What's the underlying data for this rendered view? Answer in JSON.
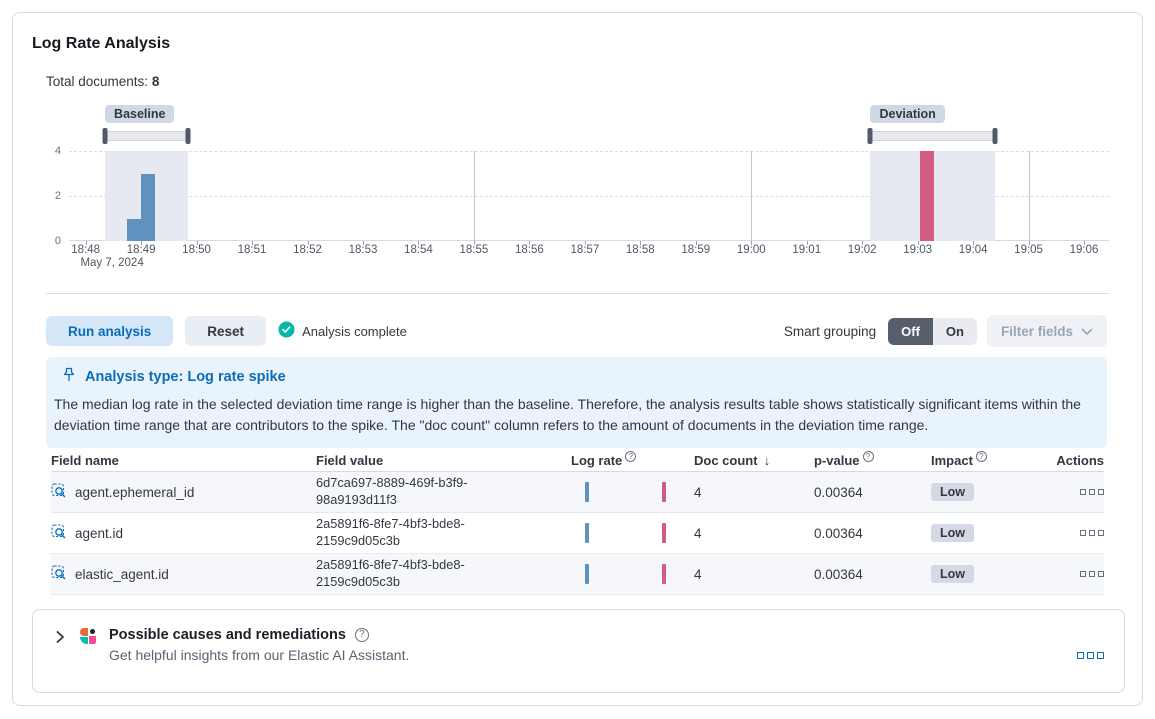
{
  "header": {
    "title": "Log Rate Analysis",
    "total_documents_label": "Total documents:",
    "total_documents_value": "8"
  },
  "chart_data": {
    "type": "bar",
    "title": "document count histogram",
    "xlabel": "time",
    "ylabel": "",
    "ylim": [
      0,
      4
    ],
    "y_gridlines": [
      2,
      4
    ],
    "y_tick_labels": [
      "4",
      "2",
      "0"
    ],
    "x_ticks": [
      "18:48",
      "18:49",
      "18:50",
      "18:51",
      "18:52",
      "18:53",
      "18:54",
      "18:55",
      "18:56",
      "18:57",
      "18:58",
      "18:59",
      "19:00",
      "19:01",
      "19:02",
      "19:03",
      "19:04",
      "19:05",
      "19:06"
    ],
    "x_date_label": "May 7, 2024",
    "major_grid_ticks": [
      7,
      12,
      17
    ],
    "domain_minutes": [
      -0.3,
      18.45
    ],
    "bars": [
      {
        "series": "baseline",
        "time": "18:48:45",
        "t": 0.75,
        "w": 0.25,
        "value": 1
      },
      {
        "series": "baseline",
        "time": "18:49:00",
        "t": 1.0,
        "w": 0.25,
        "value": 3
      },
      {
        "series": "deviation",
        "time": "19:03:00",
        "t": 15.05,
        "w": 0.25,
        "value": 4
      }
    ],
    "regions": [
      {
        "label": "Baseline",
        "t_start": 0.35,
        "t_end": 1.85
      },
      {
        "label": "Deviation",
        "t_start": 14.15,
        "t_end": 16.4
      }
    ],
    "colors": {
      "baseline": "#6092c0",
      "deviation": "#d25c82",
      "region_fill": "#e7e9f2"
    },
    "legend": "none"
  },
  "controls": {
    "run_label": "Run analysis",
    "reset_label": "Reset",
    "status_label": "Analysis complete",
    "smart_grouping_label": "Smart grouping",
    "toggle_off": "Off",
    "toggle_on": "On",
    "filter_fields_label": "Filter fields"
  },
  "callout": {
    "title": "Analysis type: Log rate spike",
    "body": "The median log rate in the selected deviation time range is higher than the baseline. Therefore, the analysis results table shows statistically significant items within the deviation time range that are contributors to the spike. The \"doc count\" column refers to the amount of documents in the deviation time range."
  },
  "table": {
    "columns": {
      "field_name": "Field name",
      "field_value": "Field value",
      "log_rate": "Log rate",
      "doc_count": "Doc count",
      "sort_arrow": "↓",
      "p_value": "p-value",
      "impact": "Impact",
      "actions": "Actions"
    },
    "rows": [
      {
        "field_name": "agent.ephemeral_id",
        "field_value": "6d7ca697-8889-469f-b3f9-98a9193d11f3",
        "doc_count": "4",
        "p_value": "0.00364",
        "impact": "Low"
      },
      {
        "field_name": "agent.id",
        "field_value": "2a5891f6-8fe7-4bf3-bde8-2159c9d05c3b",
        "doc_count": "4",
        "p_value": "0.00364",
        "impact": "Low"
      },
      {
        "field_name": "elastic_agent.id",
        "field_value": "2a5891f6-8fe7-4bf3-bde8-2159c9d05c3b",
        "doc_count": "4",
        "p_value": "0.00364",
        "impact": "Low"
      }
    ]
  },
  "ai_panel": {
    "title": "Possible causes and remediations",
    "subtitle": "Get helpful insights from our Elastic AI Assistant.",
    "help_glyph": "?"
  },
  "colors": {
    "primary_blue": "#0b6db8",
    "success_teal": "#00b9a6",
    "badge_gray": "#d3dae6"
  }
}
